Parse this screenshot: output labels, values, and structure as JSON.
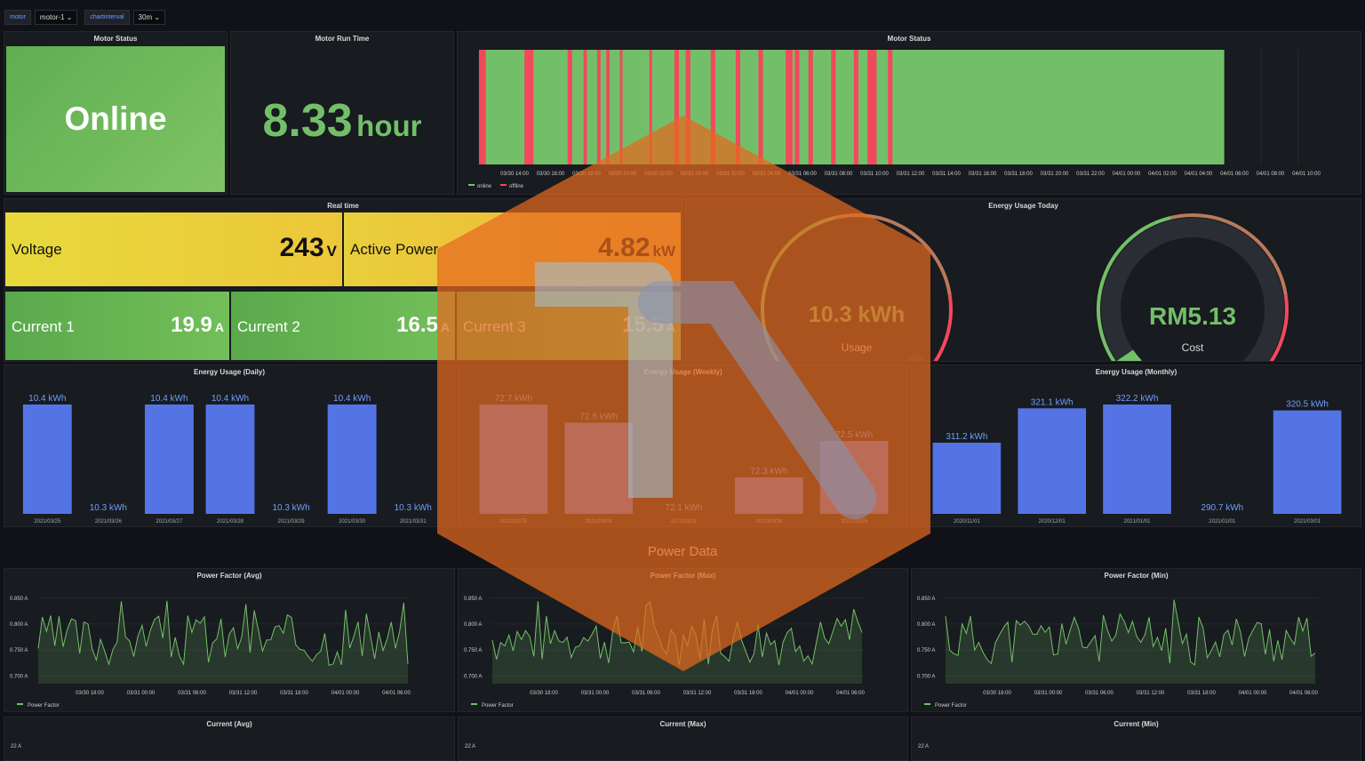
{
  "variables": [
    {
      "label": "motor",
      "value": "motor-1"
    },
    {
      "label": "chartinterval",
      "value": "30m"
    }
  ],
  "motor_status": {
    "title": "Motor Status",
    "value": "Online"
  },
  "run_time": {
    "title": "Motor Run Time",
    "value": "8.33",
    "unit": "hour"
  },
  "status_timeline": {
    "title": "Motor Status",
    "ticks": [
      "03/30 14:00",
      "03/30 16:00",
      "03/30 18:00",
      "03/30 20:00",
      "03/30 22:00",
      "03/31 00:00",
      "03/31 02:00",
      "03/31 04:00",
      "03/31 06:00",
      "03/31 08:00",
      "03/31 10:00",
      "03/31 12:00",
      "03/31 14:00",
      "03/31 16:00",
      "03/31 18:00",
      "03/31 20:00",
      "03/31 22:00",
      "04/01 00:00",
      "04/01 02:00",
      "04/01 04:00",
      "04/01 06:00",
      "04/01 08:00",
      "04/01 10:00"
    ],
    "legend": [
      {
        "name": "online",
        "color": "#73bf69"
      },
      {
        "name": "offline",
        "color": "#f2495c"
      }
    ],
    "offline_segments": [
      [
        0,
        0.3
      ],
      [
        2,
        2.4
      ],
      [
        3.9,
        4.1
      ],
      [
        4.6,
        4.75
      ],
      [
        5.2,
        5.35
      ],
      [
        5.6,
        5.75
      ],
      [
        6.2,
        6.3
      ],
      [
        7.5,
        7.6
      ],
      [
        8.6,
        8.8
      ],
      [
        9.1,
        9.3
      ],
      [
        10.2,
        10.4
      ],
      [
        11.3,
        11.5
      ],
      [
        12.3,
        12.5
      ],
      [
        13.5,
        13.8
      ],
      [
        13.9,
        14.1
      ],
      [
        14.5,
        14.7
      ],
      [
        15.5,
        15.7
      ],
      [
        16.5,
        16.7
      ],
      [
        17.1,
        17.5
      ],
      [
        18,
        18.2
      ]
    ],
    "data_end_fraction": 0.595
  },
  "realtime": {
    "title": "Real time",
    "voltage": {
      "label": "Voltage",
      "value": "243",
      "unit": "V"
    },
    "active_power": {
      "label": "Active Power",
      "value": "4.82",
      "unit": "kW"
    },
    "current1": {
      "label": "Current 1",
      "value": "19.9",
      "unit": "A"
    },
    "current2": {
      "label": "Current 2",
      "value": "16.5",
      "unit": "A"
    },
    "current3": {
      "label": "Current 3",
      "value": "15.5",
      "unit": "A"
    }
  },
  "energy_today": {
    "title": "Energy Usage Today",
    "usage": {
      "value": "10.3 kWh",
      "label": "Usage",
      "fraction": 0.97
    },
    "cost": {
      "value": "RM5.13",
      "label": "Cost",
      "fraction": 0.04
    }
  },
  "chart_data": [
    {
      "type": "bar",
      "title": "Energy Usage (Daily)",
      "categories": [
        "2021/03/25",
        "2021/03/26",
        "2021/03/27",
        "2021/03/28",
        "2021/03/29",
        "2021/03/30",
        "2021/03/31"
      ],
      "values": [
        10.4,
        10.3,
        10.4,
        10.4,
        10.3,
        10.4,
        10.3
      ],
      "labels": [
        "10.4 kWh",
        "10.3 kWh",
        "10.4 kWh",
        "10.4 kWh",
        "10.3 kWh",
        "10.4 kWh",
        "10.3 kWh"
      ],
      "ylim": [
        10.3,
        10.4
      ]
    },
    {
      "type": "bar",
      "title": "Energy Usage (Weekly)",
      "categories": [
        "2021/02/25",
        "2021/03/04",
        "2021/03/11",
        "2021/03/18",
        "2021/03/25"
      ],
      "values": [
        72.7,
        72.6,
        72.1,
        72.3,
        72.5
      ],
      "labels": [
        "72.7 kWh",
        "72.6 kWh",
        "72.1 kWh",
        "72.3 kWh",
        "72.5 kWh"
      ],
      "ylim": [
        72.1,
        72.7
      ]
    },
    {
      "type": "bar",
      "title": "Energy Usage (Monthly)",
      "categories": [
        "2020/11/01",
        "2020/12/01",
        "2021/01/01",
        "2021/02/01",
        "2021/03/01"
      ],
      "values": [
        311.2,
        321.1,
        322.2,
        290.7,
        320.5
      ],
      "labels": [
        "311.2 kWh",
        "321.1 kWh",
        "322.2 kWh",
        "290.7 kWh",
        "320.5 kWh"
      ],
      "ylim": [
        290.7,
        322.2
      ]
    },
    {
      "type": "area",
      "title": "Power Factor (Avg)",
      "yticks": [
        "0.850 A",
        "0.800 A",
        "0.750 A",
        "0.700 A"
      ],
      "ylim": [
        0.685,
        0.865
      ],
      "xticks": [
        "03/30 18:00",
        "03/31 00:00",
        "03/31 06:00",
        "03/31 12:00",
        "03/31 18:00",
        "04/01 00:00",
        "04/01 06:00"
      ],
      "legend": "Power Factor",
      "seed": 3
    },
    {
      "type": "area",
      "title": "Power Factor (Max)",
      "yticks": [
        "0.850 A",
        "0.800 A",
        "0.750 A",
        "0.700 A"
      ],
      "ylim": [
        0.685,
        0.865
      ],
      "xticks": [
        "03/30 18:00",
        "03/31 00:00",
        "03/31 06:00",
        "03/31 12:00",
        "03/31 18:00",
        "04/01 00:00",
        "04/01 06:00"
      ],
      "legend": "Power Factor",
      "seed": 7
    },
    {
      "type": "area",
      "title": "Power Factor (Min)",
      "yticks": [
        "0.850 A",
        "0.800 A",
        "0.750 A",
        "0.700 A"
      ],
      "ylim": [
        0.685,
        0.865
      ],
      "xticks": [
        "03/30 18:00",
        "03/31 00:00",
        "03/31 06:00",
        "03/31 12:00",
        "03/31 18:00",
        "04/01 00:00",
        "04/01 06:00"
      ],
      "legend": "Power Factor",
      "seed": 11
    }
  ],
  "section_title": "Power Data",
  "current_panels": [
    {
      "title": "Current (Avg)",
      "ytick": "22 A"
    },
    {
      "title": "Current (Max)",
      "ytick": "22 A"
    },
    {
      "title": "Current (Min)",
      "ytick": "22 A"
    }
  ],
  "colors": {
    "green": "#73bf69",
    "red": "#f2495c",
    "blue": "#5474e6",
    "yellow": "#e8d23a",
    "orange": "#f0b235"
  }
}
